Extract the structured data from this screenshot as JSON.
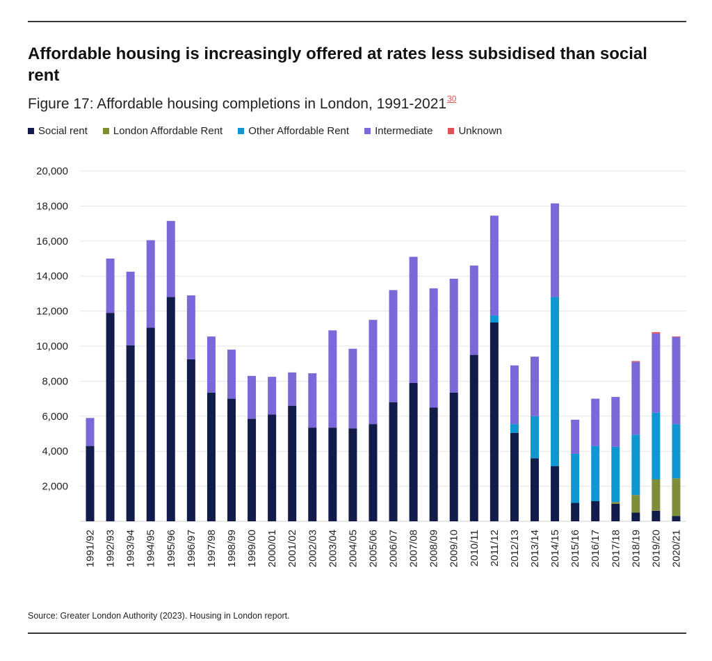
{
  "header": {
    "title": "Affordable housing is increasingly offered at rates less subsidised than social rent",
    "subtitle": "Figure 17: Affordable housing completions in London, 1991-2021",
    "footnote": "30"
  },
  "source": "Source: Greater London Authority (2023). Housing in London report.",
  "colors": {
    "social_rent": "#111c4a",
    "london_affordable_rent": "#7e8d3a",
    "other_affordable_rent": "#0e97d2",
    "intermediate": "#7b68d9",
    "unknown": "#e05252",
    "grid": "#e3e3e3"
  },
  "chart_data": {
    "type": "bar",
    "stacked": true,
    "title": "Affordable housing completions in London, 1991-2021",
    "xlabel": "",
    "ylabel": "",
    "ylim": [
      0,
      20000
    ],
    "yticks": [
      2000,
      4000,
      6000,
      8000,
      10000,
      12000,
      14000,
      16000,
      18000,
      20000
    ],
    "ytick_labels": [
      "2,000",
      "4,000",
      "6,000",
      "8,000",
      "10,000",
      "12,000",
      "14,000",
      "16,000",
      "18,000",
      "20,000"
    ],
    "grid": true,
    "legend_position": "top-left",
    "categories": [
      "1991/92",
      "1992/93",
      "1993/94",
      "1994/95",
      "1995/96",
      "1996/97",
      "1997/98",
      "1998/99",
      "1999/00",
      "2000/01",
      "2001/02",
      "2002/03",
      "2003/04",
      "2004/05",
      "2005/06",
      "2006/07",
      "2007/08",
      "2008/09",
      "2009/10",
      "2010/11",
      "2011/12",
      "2012/13",
      "2013/14",
      "2014/15",
      "2015/16",
      "2016/17",
      "2017/18",
      "2018/19",
      "2019/20",
      "2020/21"
    ],
    "series": [
      {
        "key": "social_rent",
        "name": "Social rent",
        "values": [
          4300,
          11900,
          10050,
          11050,
          12800,
          9250,
          7350,
          7000,
          5850,
          6100,
          6600,
          5350,
          5350,
          5300,
          5550,
          6800,
          7900,
          6500,
          7350,
          9500,
          11350,
          5050,
          3600,
          3150,
          1050,
          1150,
          1000,
          500,
          600,
          300
        ]
      },
      {
        "key": "london_affordable_rent",
        "name": "London Affordable Rent",
        "values": [
          0,
          0,
          0,
          0,
          0,
          0,
          0,
          0,
          0,
          0,
          0,
          0,
          0,
          0,
          0,
          0,
          0,
          0,
          0,
          0,
          0,
          0,
          0,
          0,
          0,
          0,
          100,
          1000,
          1800,
          2150
        ]
      },
      {
        "key": "other_affordable_rent",
        "name": "Other Affordable Rent",
        "values": [
          0,
          0,
          0,
          0,
          0,
          0,
          0,
          0,
          0,
          0,
          0,
          0,
          0,
          0,
          0,
          0,
          0,
          0,
          0,
          0,
          400,
          500,
          2400,
          9650,
          2800,
          3150,
          3150,
          3450,
          3800,
          3100
        ]
      },
      {
        "key": "intermediate",
        "name": "Intermediate",
        "values": [
          1600,
          3100,
          4200,
          5000,
          4350,
          3650,
          3200,
          2800,
          2450,
          2150,
          1900,
          3100,
          5550,
          4550,
          5950,
          6400,
          7200,
          6800,
          6500,
          5100,
          5700,
          3350,
          3400,
          5350,
          1950,
          2700,
          2850,
          4150,
          4520,
          4970
        ]
      },
      {
        "key": "unknown",
        "name": "Unknown",
        "values": [
          0,
          0,
          0,
          0,
          0,
          0,
          0,
          0,
          0,
          0,
          0,
          0,
          0,
          0,
          0,
          0,
          0,
          0,
          0,
          0,
          0,
          0,
          0,
          0,
          0,
          0,
          0,
          50,
          80,
          30
        ]
      }
    ]
  }
}
